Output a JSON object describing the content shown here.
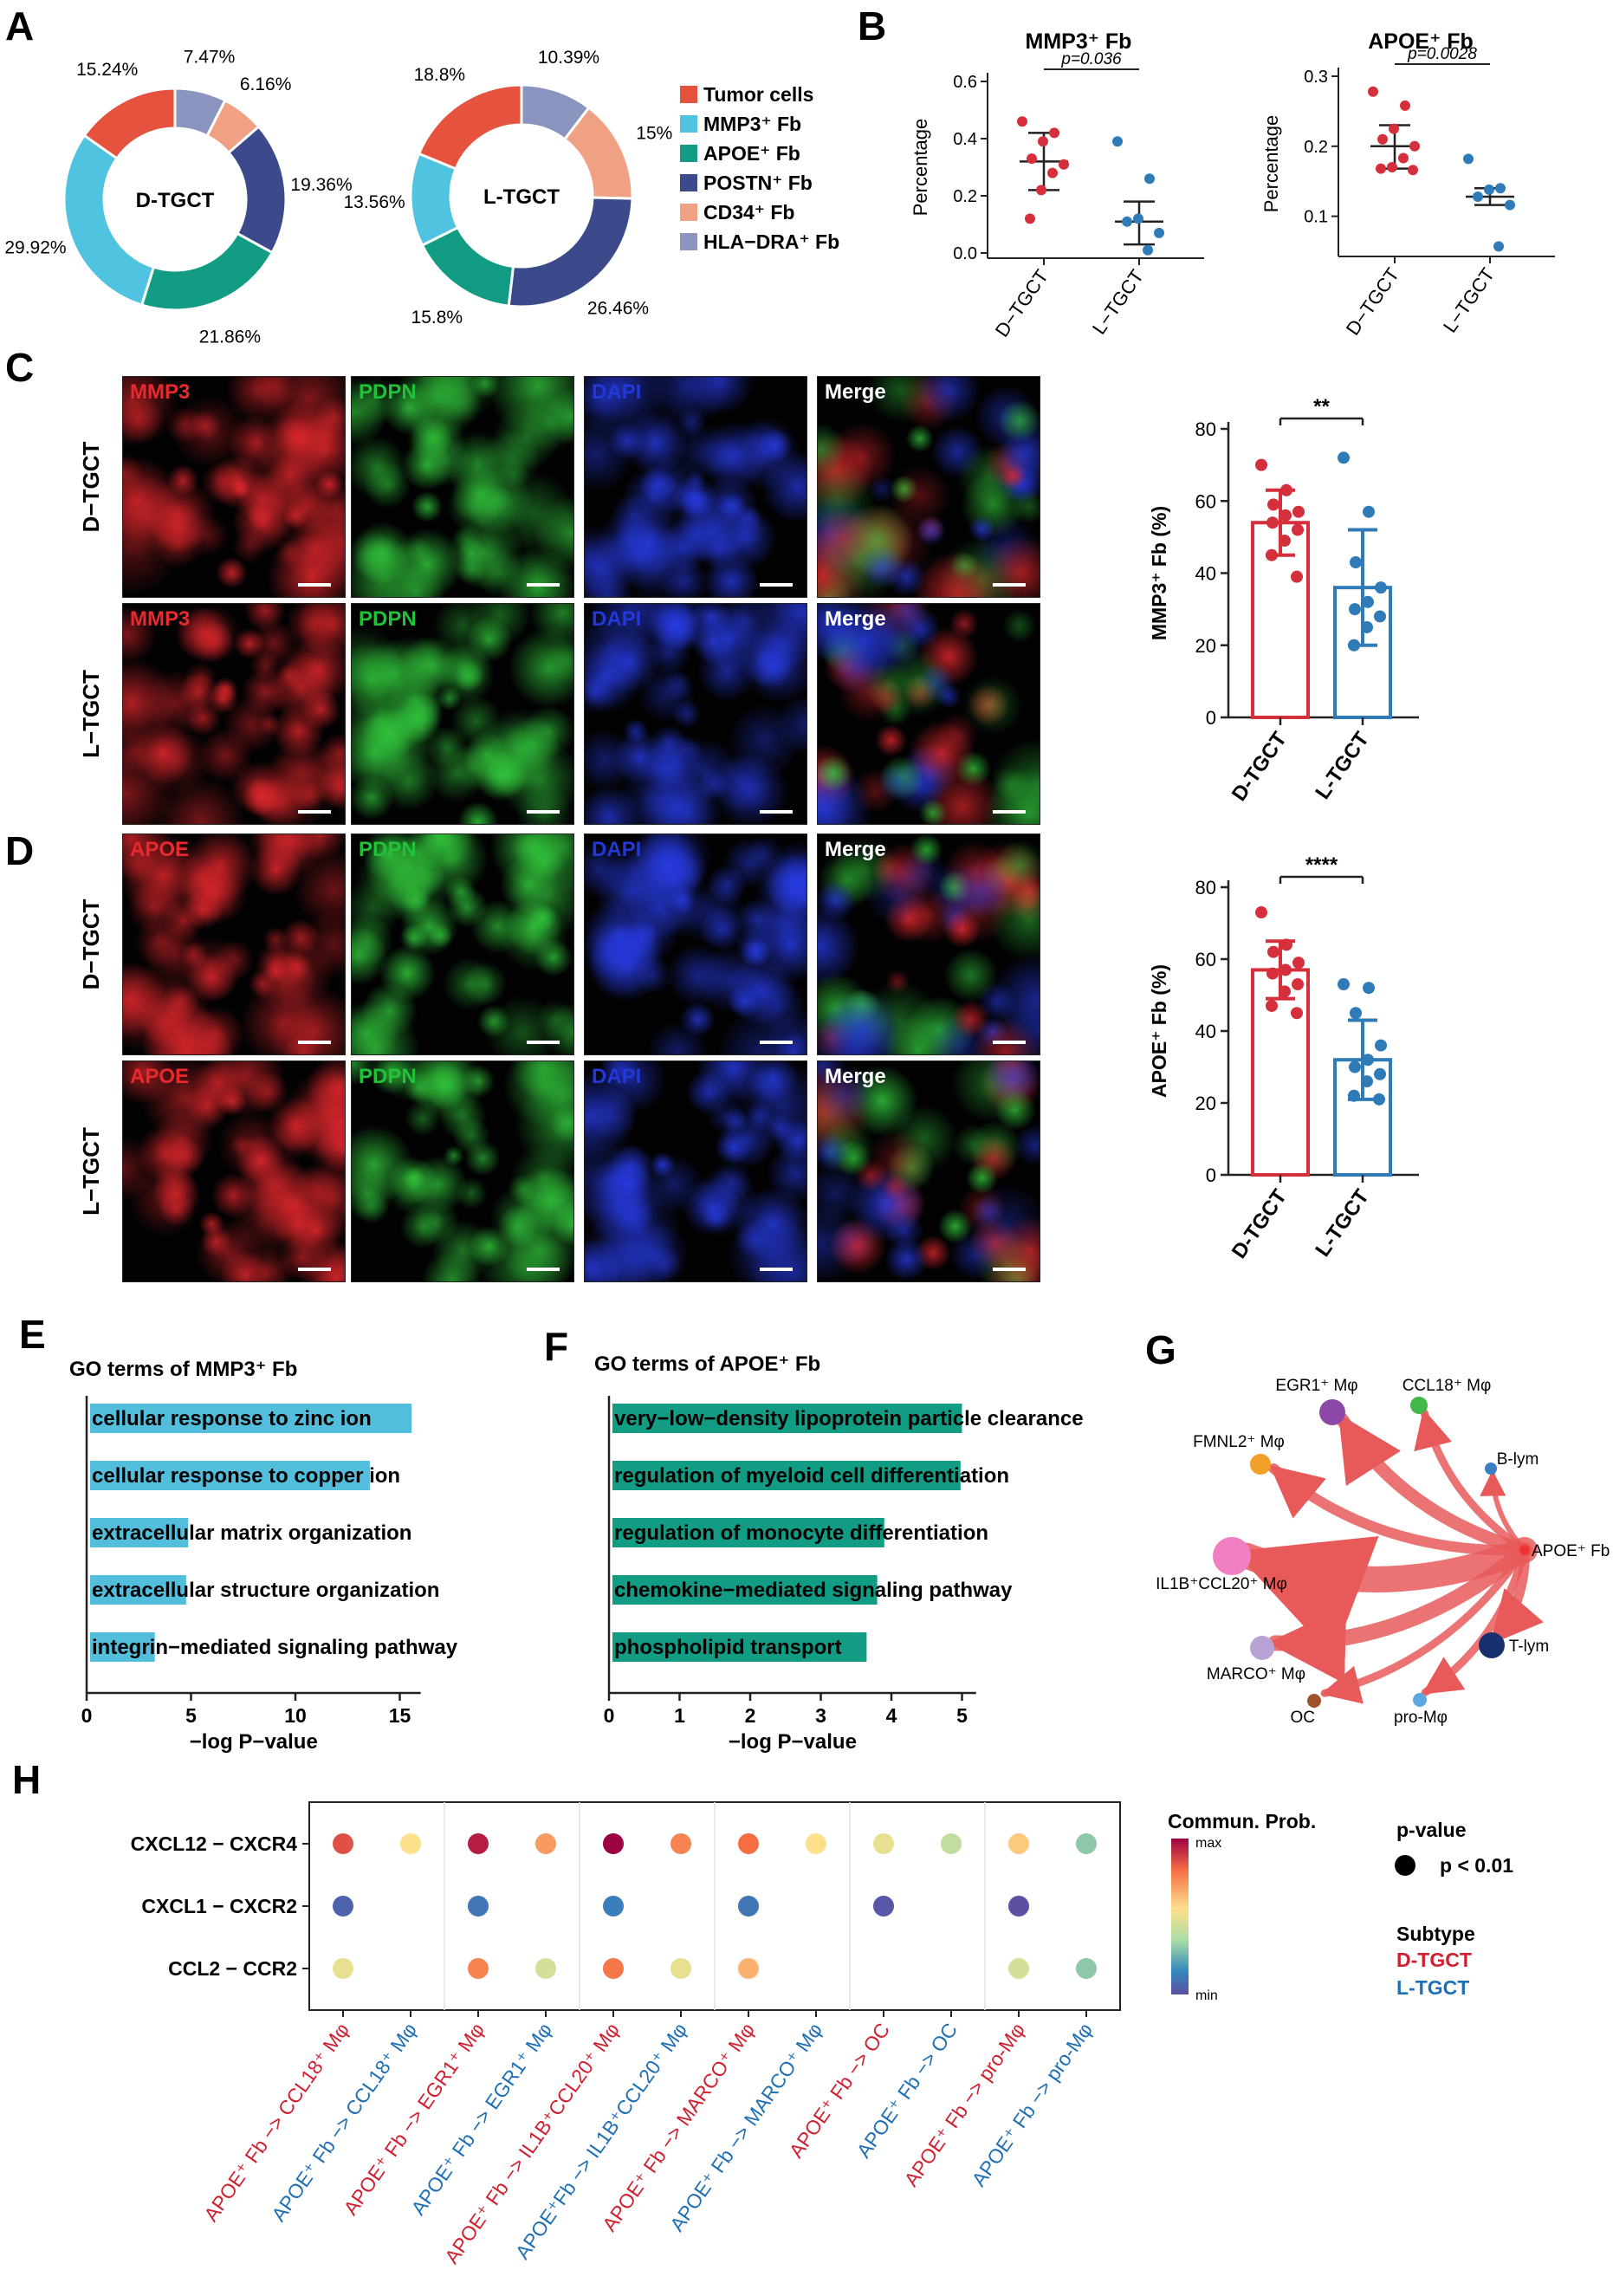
{
  "panels": {
    "A": {
      "letter": "A",
      "donuts": [
        {
          "center_label": "D-TGCT",
          "slices": [
            {
              "label": "15.24%",
              "value": 15.24,
              "color": "#e5533e"
            },
            {
              "label": "29.92%",
              "value": 29.92,
              "color": "#4fc3e0"
            },
            {
              "label": "21.86%",
              "value": 21.86,
              "color": "#139c84"
            },
            {
              "label": "19.36%",
              "value": 19.36,
              "color": "#3c4a8c"
            },
            {
              "label": "6.16%",
              "value": 6.16,
              "color": "#f1a183"
            },
            {
              "label": "7.47%",
              "value": 7.47,
              "color": "#8a95bf"
            }
          ]
        },
        {
          "center_label": "L-TGCT",
          "slices": [
            {
              "label": "18.8%",
              "value": 18.8,
              "color": "#e5533e"
            },
            {
              "label": "13.56%",
              "value": 13.56,
              "color": "#4fc3e0"
            },
            {
              "label": "15.8%",
              "value": 15.8,
              "color": "#139c84"
            },
            {
              "label": "26.46%",
              "value": 26.46,
              "color": "#3c4a8c"
            },
            {
              "label": "15%",
              "value": 15.0,
              "color": "#f1a183"
            },
            {
              "label": "10.39%",
              "value": 10.39,
              "color": "#8a95bf"
            }
          ]
        }
      ],
      "legend": [
        {
          "label": "Tumor cells",
          "color": "#e5533e"
        },
        {
          "label": "MMP3⁺ Fb",
          "color": "#4fc3e0"
        },
        {
          "label": "APOE⁺ Fb",
          "color": "#139c84"
        },
        {
          "label": "POSTN⁺ Fb",
          "color": "#3c4a8c"
        },
        {
          "label": "CD34⁺ Fb",
          "color": "#f1a183"
        },
        {
          "label": "HLA−DRA⁺ Fb",
          "color": "#8a95bf"
        }
      ]
    },
    "B": {
      "letter": "B",
      "plots": [
        {
          "title": "MMP3⁺ Fb",
          "ylabel": "Percentage",
          "ylim": [
            0,
            0.6
          ],
          "ticks": [
            "0.0",
            "0.2",
            "0.4",
            "0.6"
          ],
          "tick_values": [
            0,
            0.2,
            0.4,
            0.6
          ],
          "p_label": "p=0.036",
          "categories": [
            "D−TGCT",
            "L−TGCT"
          ],
          "groups": [
            {
              "color": "#d62f3c",
              "mean": 0.32,
              "sd_low": 0.22,
              "sd_high": 0.42,
              "points": [
                0.46,
                0.42,
                0.39,
                0.33,
                0.31,
                0.28,
                0.22,
                0.12
              ]
            },
            {
              "color": "#2f7bb8",
              "mean": 0.11,
              "sd_low": 0.03,
              "sd_high": 0.18,
              "points": [
                0.39,
                0.26,
                0.12,
                0.11,
                0.07,
                0.01
              ]
            }
          ]
        },
        {
          "title": "APOE⁺ Fb",
          "ylabel": "Percentage",
          "ylim": [
            0.05,
            0.3
          ],
          "ticks": [
            "0.1",
            "0.2",
            "0.3"
          ],
          "tick_values": [
            0.1,
            0.2,
            0.3
          ],
          "p_label": "p=0.0028",
          "categories": [
            "D−TGCT",
            "L−TGCT"
          ],
          "groups": [
            {
              "color": "#d62f3c",
              "mean": 0.2,
              "sd_low": 0.168,
              "sd_high": 0.23,
              "points": [
                0.278,
                0.258,
                0.225,
                0.21,
                0.2,
                0.183,
                0.17,
                0.168,
                0.166
              ]
            },
            {
              "color": "#2f7bb8",
              "mean": 0.128,
              "sd_low": 0.116,
              "sd_high": 0.14,
              "points": [
                0.182,
                0.14,
                0.138,
                0.128,
                0.116,
                0.057
              ]
            }
          ]
        }
      ]
    },
    "C": {
      "letter": "C",
      "rows": [
        "D−TGCT",
        "L−TGCT"
      ],
      "channels": [
        {
          "label": "MMP3",
          "color": "#e8292d",
          "hue": "red"
        },
        {
          "label": "PDPN",
          "color": "#21c23a",
          "hue": "green"
        },
        {
          "label": "DAPI",
          "color": "#2238d8",
          "hue": "blue"
        },
        {
          "label": "Merge",
          "color": "#ffffff",
          "hue": "merge"
        }
      ],
      "bar": {
        "ylabel": "MMP3⁺ Fb (%)",
        "ylim": [
          0,
          80
        ],
        "ticks": [
          "0",
          "20",
          "40",
          "60",
          "80"
        ],
        "tick_values": [
          0,
          20,
          40,
          60,
          80
        ],
        "sig": "**",
        "categories": [
          "D-TGCT",
          "L-TGCT"
        ],
        "groups": [
          {
            "color": "#d62f3c",
            "mean": 54,
            "sd": 9,
            "points": [
              70,
              63,
              59,
              57,
              56,
              54,
              52,
              49,
              45,
              39
            ]
          },
          {
            "color": "#2f7bb8",
            "mean": 36,
            "sd": 16,
            "points": [
              72,
              57,
              43,
              36,
              32,
              30,
              28,
              25,
              20
            ]
          }
        ]
      }
    },
    "D": {
      "letter": "D",
      "rows": [
        "D−TGCT",
        "L−TGCT"
      ],
      "channels": [
        {
          "label": "APOE",
          "color": "#e8292d",
          "hue": "red"
        },
        {
          "label": "PDPN",
          "color": "#21c23a",
          "hue": "green"
        },
        {
          "label": "DAPI",
          "color": "#2238d8",
          "hue": "blue"
        },
        {
          "label": "Merge",
          "color": "#ffffff",
          "hue": "merge"
        }
      ],
      "bar": {
        "ylabel": "APOE⁺ Fb (%)",
        "ylim": [
          0,
          80
        ],
        "ticks": [
          "0",
          "20",
          "40",
          "60",
          "80"
        ],
        "tick_values": [
          0,
          20,
          40,
          60,
          80
        ],
        "sig": "****",
        "categories": [
          "D-TGCT",
          "L-TGCT"
        ],
        "groups": [
          {
            "color": "#d62f3c",
            "mean": 57,
            "sd": 8,
            "points": [
              73,
              64,
              62,
              59,
              57,
              56,
              53,
              51,
              47,
              45
            ]
          },
          {
            "color": "#2f7bb8",
            "mean": 32,
            "sd": 11,
            "points": [
              53,
              52,
              45,
              36,
              32,
              30,
              28,
              26,
              22,
              21
            ]
          }
        ]
      }
    },
    "E": {
      "letter": "E",
      "title": "GO terms of MMP3⁺ Fb",
      "xlabel": "−log P−value",
      "color": "#53bedc",
      "xlim": [
        0,
        16
      ],
      "ticks": [
        "0",
        "5",
        "10",
        "15"
      ],
      "tick_values": [
        0,
        5,
        10,
        15
      ],
      "terms": [
        {
          "label": "cellular response to zinc ion",
          "value": 15.4
        },
        {
          "label": "cellular response to copper ion",
          "value": 13.4
        },
        {
          "label": "extracellular matrix organization",
          "value": 4.7
        },
        {
          "label": "extracellular structure organization",
          "value": 4.6
        },
        {
          "label": "integrin−mediated signaling pathway",
          "value": 3.1
        }
      ]
    },
    "F": {
      "letter": "F",
      "title": "GO terms of APOE⁺ Fb",
      "xlabel": "−log P−value",
      "color": "#139c84",
      "xlim": [
        0,
        5.2
      ],
      "ticks": [
        "0",
        "1",
        "2",
        "3",
        "4",
        "5"
      ],
      "tick_values": [
        0,
        1,
        2,
        3,
        4,
        5
      ],
      "terms": [
        {
          "label": "very−low−density lipoprotein particle clearance",
          "value": 4.95
        },
        {
          "label": "regulation of myeloid cell differentiation",
          "value": 4.93
        },
        {
          "label": "regulation of monocyte differentiation",
          "value": 3.85
        },
        {
          "label": "chemokine−mediated signaling pathway",
          "value": 3.75
        },
        {
          "label": "phospholipid transport",
          "value": 3.6
        }
      ]
    },
    "G": {
      "letter": "G",
      "source": "APOE⁺ Fb",
      "nodes": [
        {
          "label": "EGR1⁺ Mφ",
          "color": "#8d47a6",
          "weight": 5
        },
        {
          "label": "CCL18⁺ Mφ",
          "color": "#40b84a",
          "weight": 3
        },
        {
          "label": "B-lym",
          "color": "#3a7ec4",
          "weight": 2
        },
        {
          "label": "FMNL2⁺ Mφ",
          "color": "#f2a02a",
          "weight": 4
        },
        {
          "label": "IL1B⁺CCL20⁺ Mφ",
          "color": "#f07fc4",
          "weight": 10
        },
        {
          "label": "MARCO⁺ Mφ",
          "color": "#b9a3d6",
          "weight": 6
        },
        {
          "label": "OC",
          "color": "#a0522d",
          "weight": 3
        },
        {
          "label": "pro-Mφ",
          "color": "#5ba7e0",
          "weight": 3
        },
        {
          "label": "T-lym",
          "color": "#1a2f6e",
          "weight": 4
        }
      ]
    },
    "H": {
      "letter": "H",
      "rows": [
        "CXCL12 − CXCR4",
        "CXCL1 − CXCR2",
        "CCL2 − CCR2"
      ],
      "columns": [
        {
          "label": "APOE⁺ Fb −> CCL18⁺ Mφ",
          "subtype": "D"
        },
        {
          "label": "APOE⁺ Fb −> CCL18⁺ Mφ",
          "subtype": "L"
        },
        {
          "label": "APOE⁺ Fb −> EGR1⁺ Mφ",
          "subtype": "D"
        },
        {
          "label": "APOE⁺ Fb −> EGR1⁺ Mφ",
          "subtype": "L"
        },
        {
          "label": "APOE⁺ Fb −> IL1B⁺CCL20⁺ Mφ",
          "subtype": "D"
        },
        {
          "label": "APOE⁺Fb −> IL1B⁺CCL20⁺ Mφ",
          "subtype": "L"
        },
        {
          "label": "APOE⁺ Fb −> MARCO⁺ Mφ",
          "subtype": "D"
        },
        {
          "label": "APOE⁺ Fb −> MARCO⁺ Mφ",
          "subtype": "L"
        },
        {
          "label": "APOE⁺ Fb −> OC",
          "subtype": "D"
        },
        {
          "label": "APOE⁺ Fb −> OC",
          "subtype": "L"
        },
        {
          "label": "APOE⁺ Fb −> pro-Mφ",
          "subtype": "D"
        },
        {
          "label": "APOE⁺ Fb −> pro-Mφ",
          "subtype": "L"
        }
      ],
      "values": [
        [
          0.85,
          0.55,
          0.95,
          0.7,
          1.0,
          0.75,
          0.8,
          0.55,
          0.5,
          0.4,
          0.6,
          0.3
        ],
        [
          0.05,
          null,
          0.1,
          null,
          0.12,
          null,
          0.1,
          null,
          0.02,
          null,
          0.0,
          null
        ],
        [
          0.5,
          null,
          0.75,
          0.45,
          0.78,
          0.5,
          0.65,
          null,
          null,
          null,
          0.45,
          0.3
        ]
      ],
      "legend": {
        "title": "Commun. Prob.",
        "max": "max",
        "min": "min",
        "pval_title": "p-value",
        "pval_label": "p < 0.01",
        "subtype_title": "Subtype",
        "subtypes": [
          {
            "label": "D-TGCT",
            "color": "#d02030"
          },
          {
            "label": "L-TGCT",
            "color": "#1f6fb5"
          }
        ]
      }
    }
  }
}
